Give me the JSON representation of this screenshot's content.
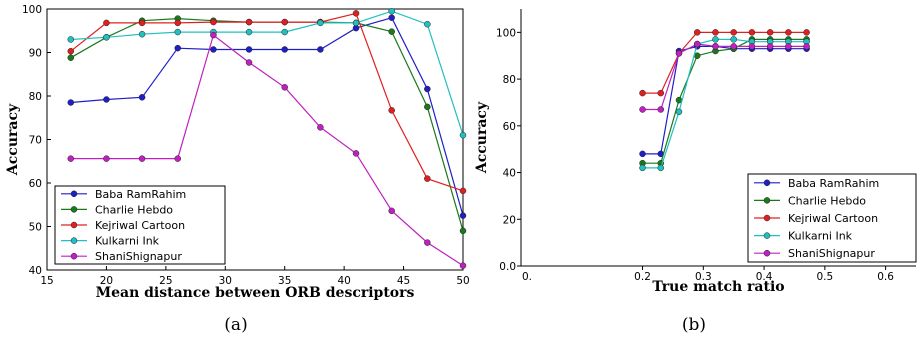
{
  "chart_data": [
    {
      "type": "line",
      "caption": "(a)",
      "xlabel": "Mean distance between ORB descriptors",
      "ylabel": "Accuracy",
      "xlim": [
        15,
        50
      ],
      "ylim": [
        40,
        100
      ],
      "xticks": [
        15,
        20,
        25,
        30,
        35,
        40,
        45,
        50
      ],
      "yticks": [
        40,
        50,
        60,
        70,
        80,
        90,
        100
      ],
      "grid": false,
      "legend_position": "lower-left",
      "x": [
        17,
        20,
        23,
        26,
        29,
        32,
        35,
        38,
        41,
        44,
        47,
        50
      ],
      "series": [
        {
          "name": "Baba RamRahim",
          "color": "#1f1fc8",
          "values": [
            78.5,
            79.2,
            79.7,
            91.0,
            90.7,
            90.7,
            90.7,
            90.7,
            95.6,
            98.0,
            81.6,
            52.5
          ]
        },
        {
          "name": "Charlie Hebdo",
          "color": "#1a7a1a",
          "values": [
            88.8,
            93.5,
            97.3,
            97.8,
            97.3,
            97.0,
            97.0,
            97.0,
            96.8,
            94.8,
            77.5,
            49.0
          ]
        },
        {
          "name": "Kejriwal Cartoon",
          "color": "#e02020",
          "values": [
            90.3,
            96.8,
            96.8,
            96.8,
            97.0,
            97.0,
            97.0,
            97.0,
            99.0,
            76.7,
            61.0,
            58.2
          ]
        },
        {
          "name": "Kulkarni Ink",
          "color": "#20c0c0",
          "values": [
            93.0,
            93.5,
            94.2,
            94.7,
            94.7,
            94.7,
            94.7,
            96.8,
            96.8,
            99.5,
            96.5,
            71.0
          ]
        },
        {
          "name": "ShaniShignapur",
          "color": "#c020c0",
          "values": [
            65.6,
            65.6,
            65.6,
            65.6,
            94.0,
            87.7,
            82.0,
            72.8,
            66.8,
            53.6,
            46.3,
            41.0
          ]
        }
      ]
    },
    {
      "type": "line",
      "caption": "(b)",
      "xlabel": "True match ratio",
      "ylabel": "Accuracy",
      "xlim": [
        0.0,
        0.65
      ],
      "ylim": [
        0,
        110
      ],
      "xticks": [
        0.2,
        0.3,
        0.4,
        0.5,
        0.6
      ],
      "xtick_labels": [
        "0.2",
        "0.3",
        "0.4",
        "0.5",
        "0.6"
      ],
      "yticks": [
        0,
        20,
        40,
        60,
        80,
        100
      ],
      "ytick_labels": [
        "0.0",
        "20",
        "40",
        "60",
        "80",
        "100"
      ],
      "origin_xlabel": "0.",
      "grid": false,
      "legend_position": "lower-right",
      "x": [
        0.2,
        0.23,
        0.26,
        0.29,
        0.32,
        0.35,
        0.38,
        0.41,
        0.44,
        0.47
      ],
      "series": [
        {
          "name": "Baba RamRahim",
          "color": "#1f1fc8",
          "values": [
            48,
            48,
            92,
            94,
            94,
            93,
            93,
            93,
            93,
            93
          ]
        },
        {
          "name": "Charlie Hebdo",
          "color": "#1a7a1a",
          "values": [
            44,
            44,
            71,
            90,
            92,
            93,
            97,
            97,
            97,
            97
          ]
        },
        {
          "name": "Kejriwal Cartoon",
          "color": "#e02020",
          "values": [
            74,
            74,
            91,
            100,
            100,
            100,
            100,
            100,
            100,
            100
          ]
        },
        {
          "name": "Kulkarni Ink",
          "color": "#20c0c0",
          "values": [
            42,
            42,
            66,
            95,
            97,
            97,
            96,
            96,
            96,
            96
          ]
        },
        {
          "name": "ShaniShignapur",
          "color": "#c020c0",
          "values": [
            67,
            67,
            91,
            95,
            94,
            94,
            94,
            94,
            94,
            94
          ]
        }
      ]
    }
  ]
}
